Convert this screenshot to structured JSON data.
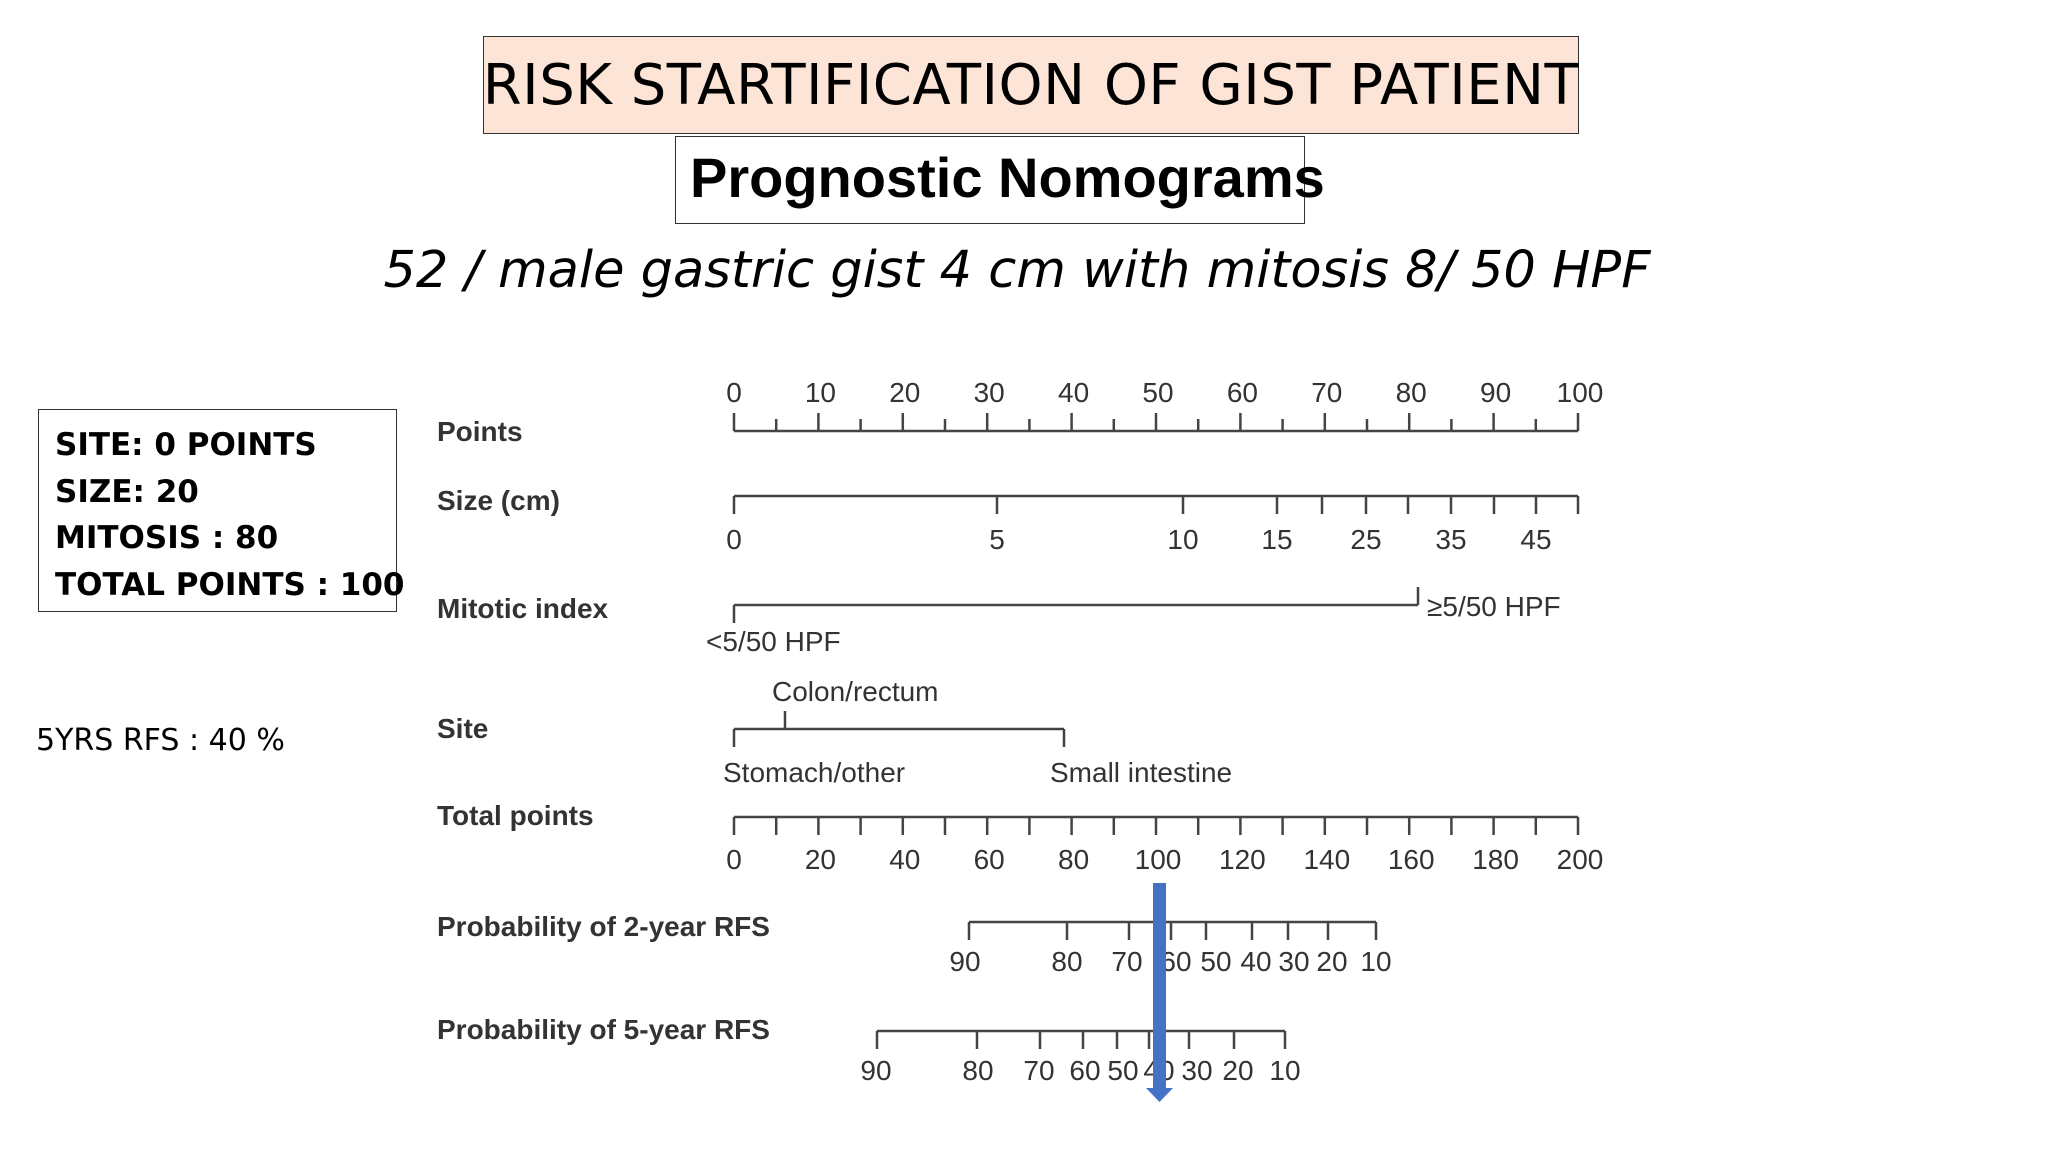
{
  "title": "RISK STARTIFICATION OF GIST PATIENT",
  "subtitle": "Prognostic Nomograms",
  "case_description": "52 / male gastric gist 4 cm with mitosis 8/ 50 HPF",
  "points_summary": [
    "SITE: 0 POINTS",
    "SIZE: 20",
    "MITOSIS : 80",
    "TOTAL POINTS : 100"
  ],
  "result_note": "5YRS RFS : 40 %",
  "arrow_color": "#4472c4",
  "nomogram": {
    "points": {
      "label": "Points",
      "major_ticks": [
        "0",
        "10",
        "20",
        "30",
        "40",
        "50",
        "60",
        "70",
        "80",
        "90",
        "100"
      ]
    },
    "size": {
      "label": "Size (cm)",
      "ticks": [
        "0",
        "5",
        "10",
        "15",
        "25",
        "35",
        "45"
      ]
    },
    "mitotic_index": {
      "label": "Mitotic index",
      "low": "<5/50 HPF",
      "high": "≥5/50 HPF"
    },
    "site": {
      "label": "Site",
      "categories": [
        "Stomach/other",
        "Colon/rectum",
        "Small intestine"
      ]
    },
    "total_points": {
      "label": "Total points",
      "major_ticks": [
        "0",
        "20",
        "40",
        "60",
        "80",
        "100",
        "120",
        "140",
        "160",
        "180",
        "200"
      ]
    },
    "rfs_2yr": {
      "label": "Probability of 2-year RFS",
      "ticks": [
        "90",
        "80",
        "70",
        "60",
        "50",
        "40",
        "30",
        "20",
        "10"
      ]
    },
    "rfs_5yr": {
      "label": "Probability of 5-year RFS",
      "ticks": [
        "90",
        "80",
        "70",
        "60",
        "50",
        "40",
        "30",
        "20",
        "10"
      ]
    }
  }
}
